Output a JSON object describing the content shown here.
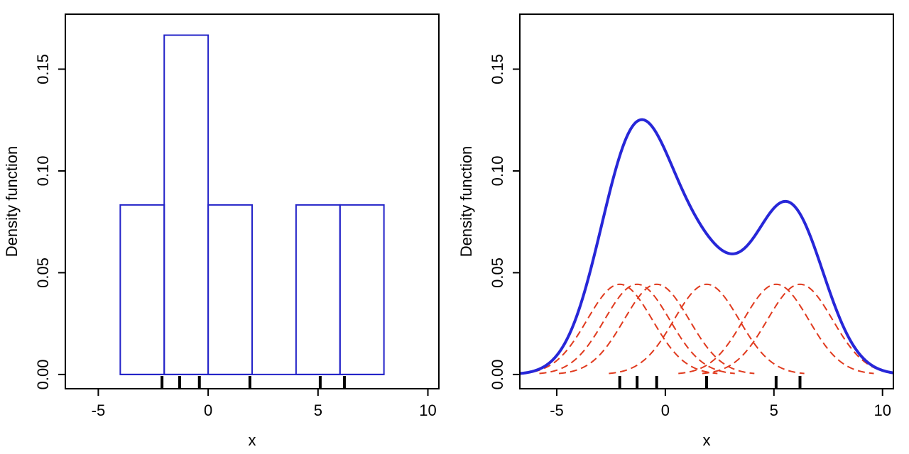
{
  "chart_data": [
    {
      "type": "histogram",
      "xlabel": "x",
      "ylabel": "Density function",
      "xlim": [
        -6.5,
        10.5
      ],
      "ylim": [
        -0.007,
        0.177
      ],
      "x_ticks": [
        "-5",
        "0",
        "5",
        "10"
      ],
      "y_ticks": [
        "0.00",
        "0.05",
        "0.10",
        "0.15"
      ],
      "bin_width": 2,
      "bars": [
        {
          "x0": -4,
          "x1": -2,
          "density": 0.0833
        },
        {
          "x0": -2,
          "x1": 0,
          "density": 0.1667
        },
        {
          "x0": 0,
          "x1": 2,
          "density": 0.0833
        },
        {
          "x0": 2,
          "x1": 4,
          "density": 0
        },
        {
          "x0": 4,
          "x1": 6,
          "density": 0.0833
        },
        {
          "x0": 6,
          "x1": 8,
          "density": 0.0833
        }
      ],
      "rug": [
        -2.1,
        -1.3,
        -0.4,
        1.9,
        5.1,
        6.2
      ],
      "colors": {
        "bars": "#2323c8",
        "rug": "#000000"
      }
    },
    {
      "type": "line",
      "xlabel": "x",
      "ylabel": "Density function",
      "xlim": [
        -6.7,
        10.5
      ],
      "ylim": [
        -0.007,
        0.177
      ],
      "x_ticks": [
        "-5",
        "0",
        "5",
        "10"
      ],
      "y_ticks": [
        "0.00",
        "0.05",
        "0.10",
        "0.15"
      ],
      "kernel": "gaussian",
      "bandwidth": 1.5,
      "sample": [
        -2.1,
        -1.3,
        -0.4,
        1.9,
        5.1,
        6.2
      ],
      "series": [
        {
          "role": "kernel density estimate",
          "style": "solid",
          "color": "#2727d8"
        },
        {
          "role": "individual kernels (scaled by 1/n)",
          "style": "dashed",
          "color": "#e03a1e"
        }
      ],
      "rug": [
        -2.1,
        -1.3,
        -0.4,
        1.9,
        5.1,
        6.2
      ]
    }
  ]
}
